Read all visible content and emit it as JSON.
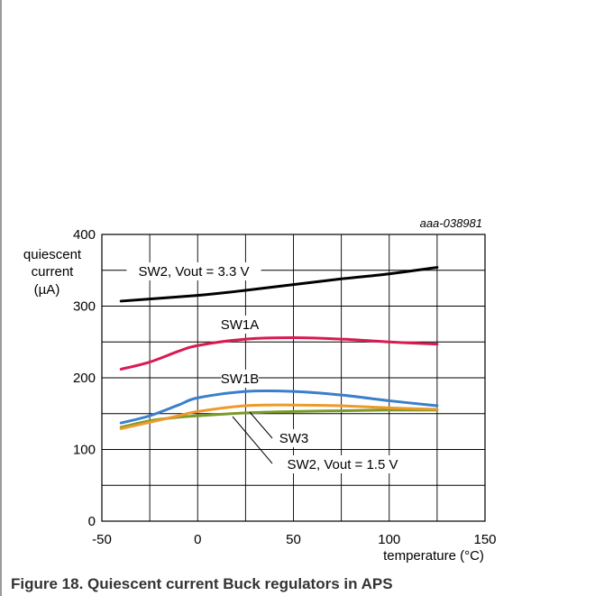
{
  "figure_id": "aaa-038981",
  "caption": "Figure 18. Quiescent current Buck regulators in APS",
  "chart_data": {
    "type": "line",
    "title": "",
    "xlabel": "temperature (°C)",
    "ylabel": "quiescent current (µA)",
    "ylabel_lines": [
      "quiescent",
      "current",
      "(µA)"
    ],
    "xlim": [
      -50,
      150
    ],
    "ylim": [
      0,
      400
    ],
    "x_ticks": [
      -50,
      0,
      50,
      100,
      150
    ],
    "y_ticks": [
      0,
      100,
      200,
      300,
      400
    ],
    "grid": true,
    "series": [
      {
        "name": "SW2, Vout = 3.3 V",
        "color": "#000000",
        "x": [
          -40,
          0,
          25,
          50,
          75,
          100,
          125
        ],
        "y": [
          307,
          315,
          322,
          330,
          338,
          345,
          354
        ]
      },
      {
        "name": "SW1A",
        "color": "#d81b52",
        "x": [
          -40,
          -25,
          -10,
          0,
          25,
          50,
          75,
          100,
          125
        ],
        "y": [
          212,
          222,
          237,
          245,
          254,
          256,
          254,
          250,
          247
        ]
      },
      {
        "name": "SW1B",
        "color": "#3a7fcc",
        "x": [
          -40,
          -25,
          -10,
          0,
          25,
          50,
          75,
          100,
          125
        ],
        "y": [
          137,
          147,
          162,
          172,
          181,
          181,
          176,
          168,
          161
        ]
      },
      {
        "name": "SW3",
        "color": "#ee9a2a",
        "x": [
          -40,
          -25,
          -10,
          0,
          25,
          50,
          75,
          100,
          125
        ],
        "y": [
          129,
          138,
          147,
          153,
          161,
          162,
          161,
          158,
          156
        ]
      },
      {
        "name": "SW2, Vout = 1.5 V",
        "color": "#7a9a2a",
        "x": [
          -40,
          -25,
          -10,
          0,
          25,
          50,
          75,
          100,
          125
        ],
        "y": [
          131,
          140,
          145,
          147,
          151,
          153,
          154,
          155,
          155
        ]
      }
    ]
  }
}
